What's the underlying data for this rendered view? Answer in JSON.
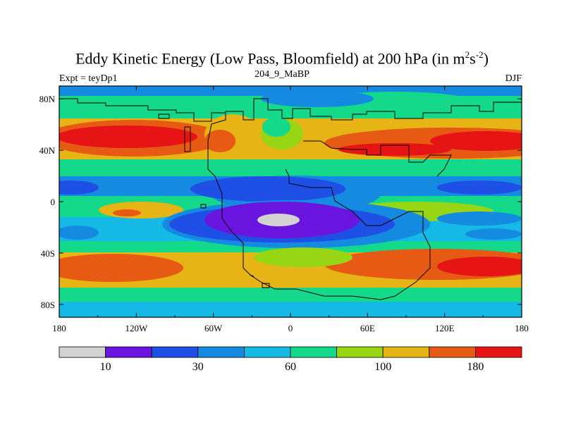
{
  "title": {
    "main": "Eddy Kinetic Energy (Low Pass, Bloomfield) at 200 hPa (in m",
    "sup1": "2",
    "mid": "s",
    "sup2": "-2",
    "end": ")"
  },
  "subtitle": "204_9_MaBP",
  "left_label": "Expt = teyDp1",
  "right_label": "DJF",
  "map": {
    "projection": "cylindrical equidistant",
    "lon_range": [
      -180,
      180
    ],
    "lat_range": [
      -90,
      90
    ],
    "x_ticks": [
      "180",
      "120W",
      "60W",
      "0",
      "60E",
      "120E",
      "180"
    ],
    "y_ticks": [
      "80N",
      "40N",
      "0",
      "40S",
      "80S"
    ]
  },
  "colorbar": {
    "colors": [
      "#d3d3d3",
      "#6a14e0",
      "#1e50e6",
      "#148ae0",
      "#14b9e6",
      "#14d98a",
      "#96d614",
      "#e6b414",
      "#e65a14",
      "#e61414"
    ],
    "labels": [
      {
        "text": "10",
        "boundary": 1
      },
      {
        "text": "30",
        "boundary": 3
      },
      {
        "text": "60",
        "boundary": 5
      },
      {
        "text": "100",
        "boundary": 7
      },
      {
        "text": "180",
        "boundary": 9
      }
    ]
  }
}
